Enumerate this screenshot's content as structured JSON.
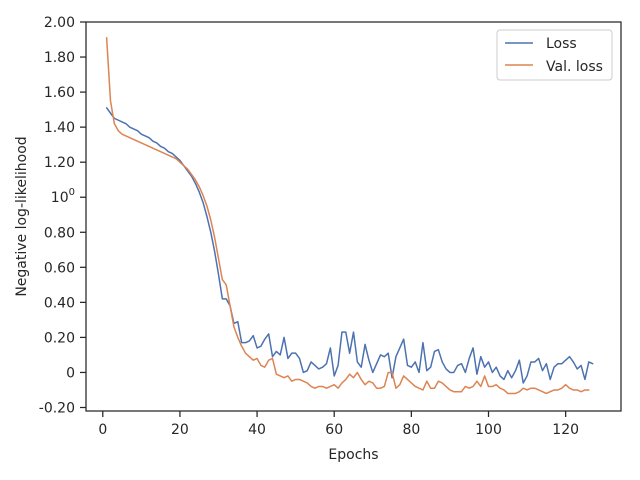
{
  "chart_data": {
    "type": "line",
    "title": "",
    "xlabel": "Epochs",
    "ylabel": "Negative log-likelihood",
    "xlim": [
      -4.35,
      134.35
    ],
    "ylim": [
      -0.22,
      2.0
    ],
    "grid": false,
    "legend_position": "top-right",
    "x_ticks": [
      {
        "value": 0,
        "label": "0"
      },
      {
        "value": 20,
        "label": "20"
      },
      {
        "value": 40,
        "label": "40"
      },
      {
        "value": 60,
        "label": "60"
      },
      {
        "value": 80,
        "label": "80"
      },
      {
        "value": 100,
        "label": "100"
      },
      {
        "value": 120,
        "label": "120"
      }
    ],
    "y_ticks": [
      {
        "value": 2.0,
        "label": "2.00"
      },
      {
        "value": 1.8,
        "label": "1.80"
      },
      {
        "value": 1.6,
        "label": "1.60"
      },
      {
        "value": 1.4,
        "label": "1.40"
      },
      {
        "value": 1.2,
        "label": "1.20"
      },
      {
        "value": 1.0,
        "label": "10",
        "sup": "0"
      },
      {
        "value": 0.8,
        "label": "0.80"
      },
      {
        "value": 0.6,
        "label": "0.60"
      },
      {
        "value": 0.4,
        "label": "0.40"
      },
      {
        "value": 0.2,
        "label": "0.20"
      },
      {
        "value": 0.0,
        "label": "0"
      },
      {
        "value": -0.2,
        "label": "-0.20"
      }
    ],
    "series": [
      {
        "name": "Loss",
        "color": "#4c72b0",
        "x_start": 1,
        "values": [
          1.51,
          1.48,
          1.45,
          1.44,
          1.43,
          1.42,
          1.4,
          1.39,
          1.38,
          1.36,
          1.35,
          1.34,
          1.32,
          1.31,
          1.29,
          1.28,
          1.26,
          1.25,
          1.23,
          1.21,
          1.18,
          1.15,
          1.12,
          1.08,
          1.03,
          0.97,
          0.89,
          0.8,
          0.69,
          0.56,
          0.42,
          0.42,
          0.38,
          0.28,
          0.29,
          0.17,
          0.17,
          0.18,
          0.21,
          0.14,
          0.15,
          0.19,
          0.22,
          0.09,
          0.12,
          0.1,
          0.2,
          0.08,
          0.11,
          0.11,
          0.08,
          0.0,
          0.01,
          0.06,
          0.04,
          0.02,
          0.03,
          0.05,
          0.14,
          -0.02,
          0.04,
          0.23,
          0.23,
          0.11,
          0.23,
          0.06,
          0.03,
          0.16,
          0.07,
          0.0,
          0.05,
          0.1,
          0.09,
          0.11,
          -0.03,
          0.09,
          0.14,
          0.19,
          0.04,
          0.03,
          0.06,
          0.0,
          0.17,
          0.01,
          0.03,
          0.12,
          0.13,
          0.06,
          0.02,
          0.0,
          0.0,
          0.04,
          0.05,
          0.0,
          0.08,
          0.14,
          -0.01,
          0.09,
          0.03,
          0.06,
          0.0,
          0.03,
          -0.02,
          -0.04,
          0.01,
          -0.03,
          0.01,
          0.07,
          -0.06,
          -0.02,
          0.06,
          0.06,
          0.08,
          0.01,
          0.05,
          -0.04,
          0.03,
          0.05,
          0.05,
          0.07,
          0.09,
          0.06,
          0.02,
          0.04,
          -0.04,
          0.06,
          0.05
        ]
      },
      {
        "name": "Val. loss",
        "color": "#dd8452",
        "x_start": 1,
        "values": [
          1.91,
          1.55,
          1.42,
          1.38,
          1.36,
          1.35,
          1.34,
          1.33,
          1.32,
          1.31,
          1.3,
          1.29,
          1.28,
          1.27,
          1.26,
          1.25,
          1.24,
          1.23,
          1.22,
          1.2,
          1.18,
          1.16,
          1.13,
          1.1,
          1.06,
          1.01,
          0.95,
          0.87,
          0.77,
          0.65,
          0.53,
          0.5,
          0.38,
          0.26,
          0.2,
          0.15,
          0.11,
          0.09,
          0.07,
          0.08,
          0.04,
          0.03,
          0.07,
          0.08,
          -0.01,
          -0.02,
          -0.03,
          -0.02,
          -0.05,
          -0.04,
          -0.04,
          -0.05,
          -0.06,
          -0.08,
          -0.09,
          -0.08,
          -0.08,
          -0.09,
          -0.08,
          -0.07,
          -0.09,
          -0.06,
          -0.04,
          -0.01,
          -0.03,
          0.0,
          -0.04,
          -0.07,
          -0.05,
          -0.06,
          -0.09,
          -0.09,
          -0.08,
          0.0,
          0.0,
          -0.09,
          -0.07,
          -0.02,
          -0.04,
          -0.06,
          -0.08,
          -0.09,
          -0.1,
          -0.05,
          -0.09,
          -0.09,
          -0.05,
          -0.06,
          -0.08,
          -0.1,
          -0.11,
          -0.11,
          -0.11,
          -0.08,
          -0.09,
          -0.08,
          -0.05,
          -0.08,
          -0.02,
          -0.08,
          -0.08,
          -0.07,
          -0.09,
          -0.1,
          -0.12,
          -0.12,
          -0.12,
          -0.11,
          -0.09,
          -0.1,
          -0.09,
          -0.09,
          -0.1,
          -0.11,
          -0.12,
          -0.11,
          -0.1,
          -0.1,
          -0.09,
          -0.07,
          -0.09,
          -0.1,
          -0.1,
          -0.11,
          -0.1,
          -0.1
        ]
      }
    ]
  }
}
